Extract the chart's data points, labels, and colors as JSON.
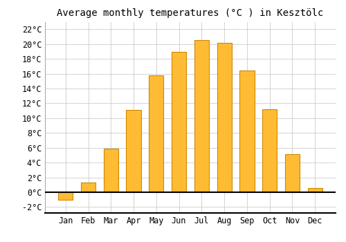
{
  "months": [
    "Jan",
    "Feb",
    "Mar",
    "Apr",
    "May",
    "Jun",
    "Jul",
    "Aug",
    "Sep",
    "Oct",
    "Nov",
    "Dec"
  ],
  "values": [
    -1.0,
    1.3,
    5.9,
    11.1,
    15.8,
    18.9,
    20.5,
    20.2,
    16.4,
    11.2,
    5.1,
    0.6
  ],
  "bar_color": "#FFBB33",
  "bar_edge_color": "#CC8800",
  "title": "Average monthly temperatures (°C ) in Kesztölc",
  "ylim": [
    -2.8,
    23.0
  ],
  "yticks": [
    -2,
    0,
    2,
    4,
    6,
    8,
    10,
    12,
    14,
    16,
    18,
    20,
    22
  ],
  "background_color": "#ffffff",
  "plot_bg_color": "#ffffff",
  "grid_color": "#cccccc",
  "title_fontsize": 10,
  "tick_fontsize": 8.5
}
